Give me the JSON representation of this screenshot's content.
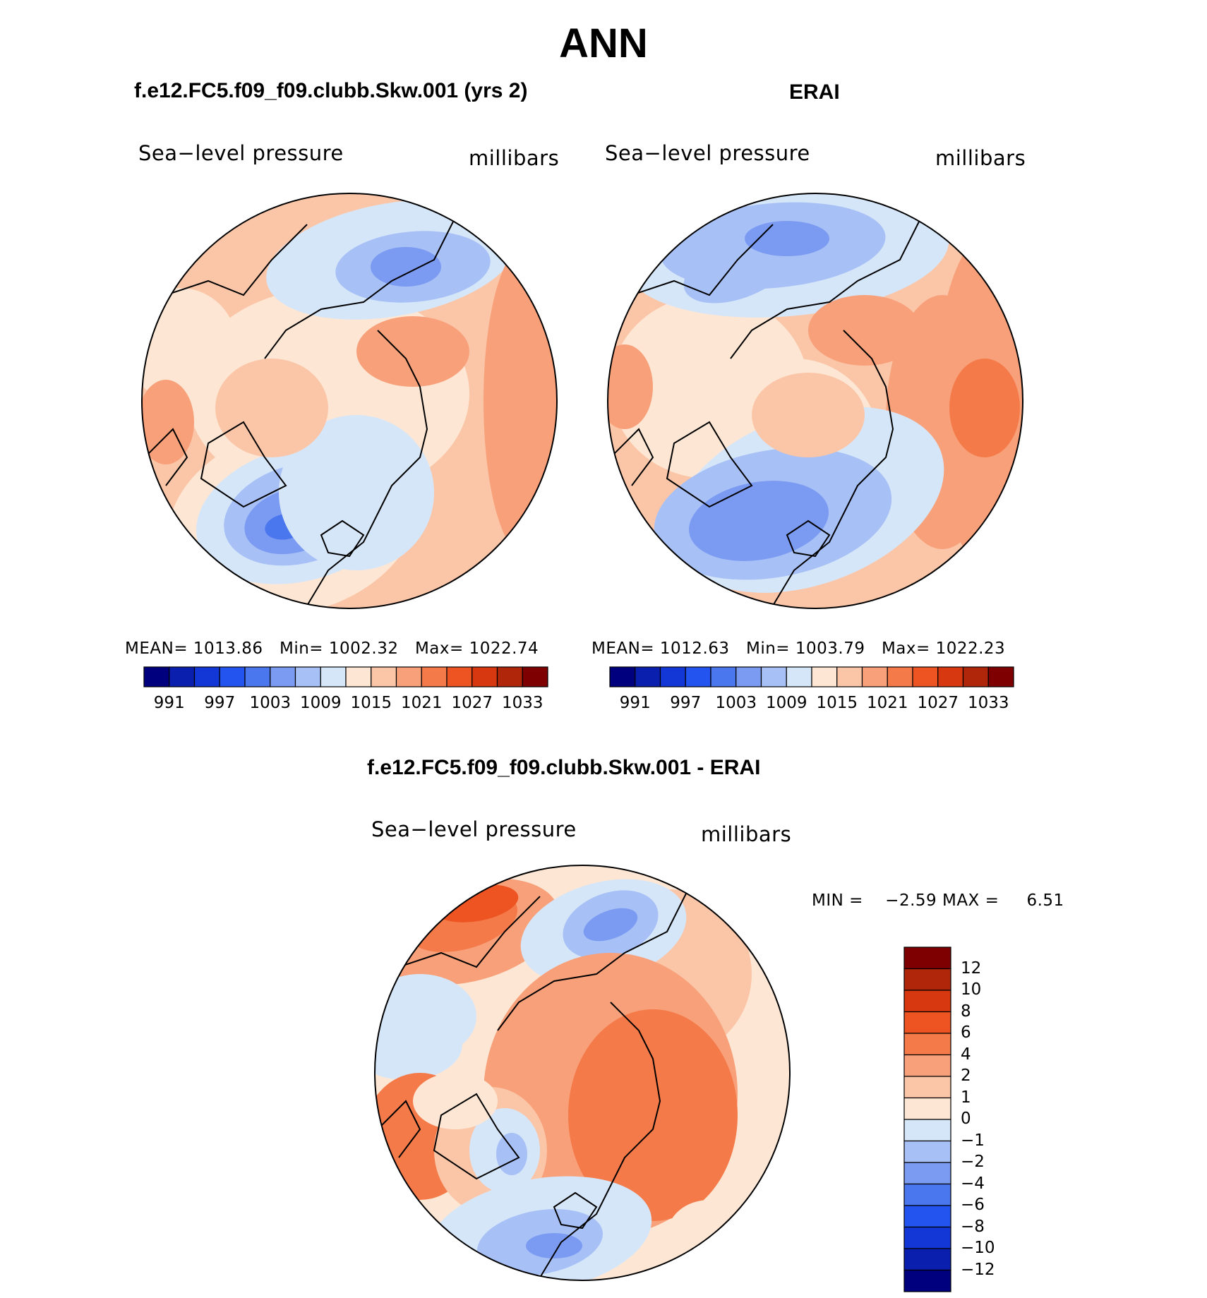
{
  "chart_data": {
    "figure_title": "ANN",
    "panels": [
      {
        "type": "heatmap",
        "projection": "north-polar-stereographic",
        "title": "f.e12.FC5.f09_f09.clubb.Skw.001 (yrs 2)",
        "left_label": "Sea−level pressure",
        "right_label": "millibars",
        "stats": {
          "mean_label": "MEAN=",
          "mean": "1013.86",
          "min_label": "Min=",
          "min": "1002.32",
          "max_label": "Max=",
          "max": "1022.74"
        },
        "colorbar": {
          "orientation": "horizontal",
          "tick_labels": [
            "991",
            "997",
            "1003",
            "1009",
            "1015",
            "1021",
            "1027",
            "1033"
          ]
        }
      },
      {
        "type": "heatmap",
        "projection": "north-polar-stereographic",
        "title": "ERAI",
        "left_label": "Sea−level pressure",
        "right_label": "millibars",
        "stats": {
          "mean_label": "MEAN=",
          "mean": "1012.63",
          "min_label": "Min=",
          "min": "1003.79",
          "max_label": "Max=",
          "max": "1022.23"
        },
        "colorbar": {
          "orientation": "horizontal",
          "tick_labels": [
            "991",
            "997",
            "1003",
            "1009",
            "1015",
            "1021",
            "1027",
            "1033"
          ]
        }
      },
      {
        "type": "heatmap",
        "projection": "north-polar-stereographic",
        "title": "f.e12.FC5.f09_f09.clubb.Skw.001 - ERAI",
        "left_label": "Sea−level pressure",
        "right_label": "millibars",
        "stats": {
          "min_label": "MIN =",
          "min": "−2.59",
          "max_label": "MAX =",
          "max": "6.51"
        },
        "colorbar": {
          "orientation": "vertical",
          "tick_labels": [
            "12",
            "10",
            "8",
            "6",
            "4",
            "2",
            "1",
            "0",
            "−1",
            "−2",
            "−4",
            "−6",
            "−8",
            "−10",
            "−12"
          ]
        }
      }
    ],
    "level_colors": [
      "#00007f",
      "#0a1fae",
      "#1337d6",
      "#2354f0",
      "#4a76ee",
      "#7b9af2",
      "#a7c0f6",
      "#d6e6f9",
      "#fde7d4",
      "#fbc6a8",
      "#f8a07a",
      "#f47a49",
      "#ee5422",
      "#d8380f",
      "#b0260a",
      "#7f0000"
    ]
  }
}
